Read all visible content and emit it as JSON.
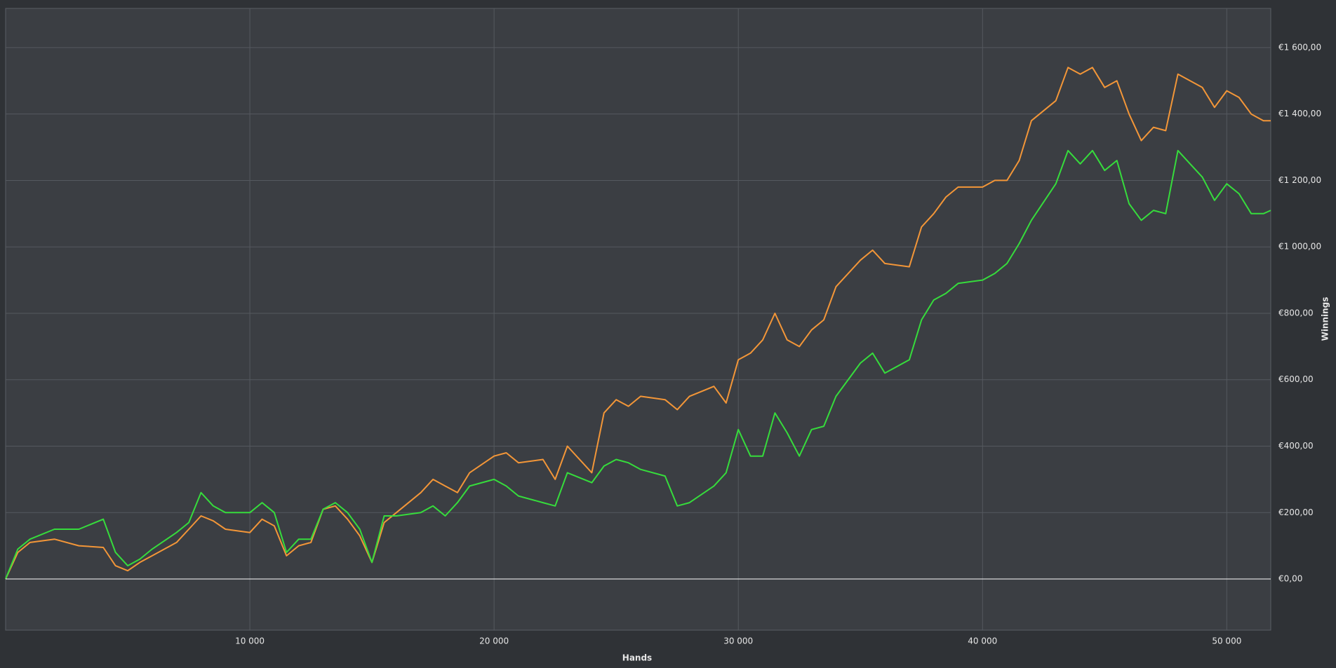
{
  "chart_data": {
    "type": "line",
    "x_label": "Hands",
    "y_label": "Winnings",
    "x": [
      0,
      500,
      1000,
      2000,
      3000,
      4000,
      4500,
      5000,
      5500,
      6000,
      7000,
      7500,
      8000,
      8500,
      9000,
      10000,
      10500,
      11000,
      11500,
      12000,
      12500,
      13000,
      13500,
      14000,
      14500,
      15000,
      15500,
      16000,
      17000,
      17500,
      18000,
      18500,
      19000,
      20000,
      20500,
      21000,
      22000,
      22500,
      23000,
      24000,
      24500,
      25000,
      25500,
      26000,
      27000,
      27500,
      28000,
      29000,
      29500,
      30000,
      30500,
      31000,
      31500,
      32000,
      32500,
      33000,
      33500,
      34000,
      35000,
      35500,
      36000,
      37000,
      37500,
      38000,
      38500,
      39000,
      40000,
      40500,
      41000,
      41500,
      42000,
      43000,
      43500,
      44000,
      44500,
      45000,
      45500,
      46000,
      46500,
      47000,
      47500,
      48000,
      48500,
      49000,
      49500,
      50000,
      50500,
      51000,
      51500,
      51800
    ],
    "series": [
      {
        "color": "#f39638",
        "values": [
          0,
          80,
          110,
          120,
          100,
          95,
          40,
          25,
          50,
          70,
          110,
          150,
          190,
          175,
          150,
          140,
          180,
          160,
          70,
          100,
          110,
          210,
          220,
          180,
          130,
          50,
          170,
          200,
          260,
          300,
          280,
          260,
          320,
          370,
          380,
          350,
          360,
          300,
          400,
          320,
          500,
          540,
          520,
          550,
          540,
          510,
          550,
          580,
          530,
          660,
          680,
          720,
          800,
          720,
          700,
          750,
          780,
          880,
          960,
          990,
          950,
          940,
          1060,
          1100,
          1150,
          1180,
          1180,
          1200,
          1200,
          1260,
          1380,
          1440,
          1540,
          1520,
          1540,
          1480,
          1500,
          1400,
          1320,
          1360,
          1350,
          1520,
          1500,
          1480,
          1420,
          1470,
          1450,
          1400,
          1380,
          1380
        ]
      },
      {
        "color": "#36dc3c",
        "values": [
          0,
          90,
          120,
          150,
          150,
          180,
          80,
          40,
          60,
          90,
          140,
          170,
          260,
          220,
          200,
          200,
          230,
          200,
          80,
          120,
          120,
          210,
          230,
          200,
          150,
          50,
          190,
          190,
          200,
          220,
          190,
          230,
          280,
          300,
          280,
          250,
          230,
          220,
          320,
          290,
          340,
          360,
          350,
          330,
          310,
          220,
          230,
          280,
          320,
          450,
          370,
          370,
          500,
          440,
          370,
          450,
          460,
          550,
          650,
          680,
          620,
          660,
          780,
          840,
          860,
          890,
          900,
          920,
          950,
          1010,
          1080,
          1190,
          1290,
          1250,
          1290,
          1230,
          1260,
          1130,
          1080,
          1110,
          1100,
          1290,
          1250,
          1210,
          1140,
          1190,
          1160,
          1100,
          1100,
          1110
        ]
      }
    ],
    "xlim": [
      0,
      51800
    ],
    "ylim": [
      -154,
      1718
    ],
    "xticks": [
      {
        "value": 10000,
        "label": "10 000"
      },
      {
        "value": 20000,
        "label": "20 000"
      },
      {
        "value": 30000,
        "label": "30 000"
      },
      {
        "value": 40000,
        "label": "40 000"
      },
      {
        "value": 50000,
        "label": "50 000"
      }
    ],
    "yticks": [
      {
        "value": 0,
        "label": "€0,00"
      },
      {
        "value": 200,
        "label": "€200,00"
      },
      {
        "value": 400,
        "label": "€400,00"
      },
      {
        "value": 600,
        "label": "€600,00"
      },
      {
        "value": 800,
        "label": "€800,00"
      },
      {
        "value": 1000,
        "label": "€1 000,00"
      },
      {
        "value": 1200,
        "label": "€1 200,00"
      },
      {
        "value": 1400,
        "label": "€1 400,00"
      },
      {
        "value": 1600,
        "label": "€1 600,00"
      }
    ],
    "grid": true
  }
}
